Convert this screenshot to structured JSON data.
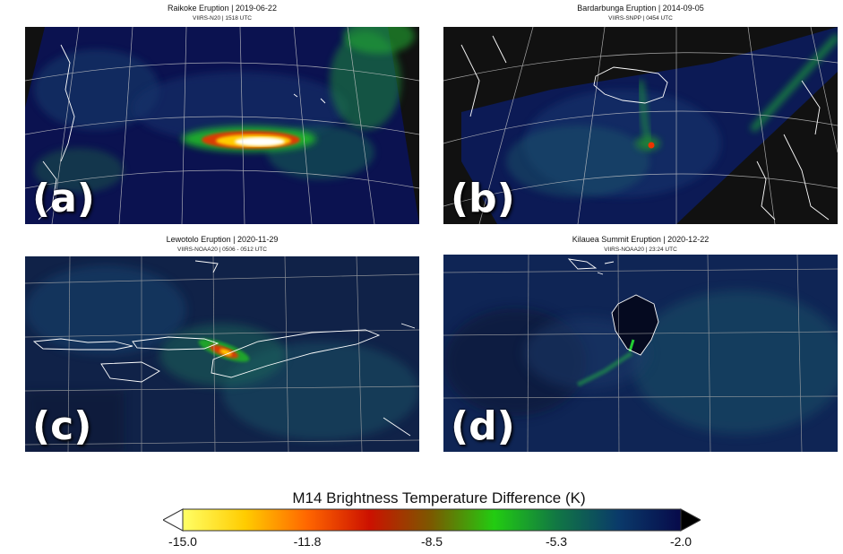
{
  "panels": [
    {
      "label": "(a)",
      "title": "Raikoke Eruption | 2019-06-22",
      "subtitle": "VIIRS-N20 | 1518 UTC"
    },
    {
      "label": "(b)",
      "title": "Bardarbunga Eruption | 2014-09-05",
      "subtitle": "VIIRS-SNPP | 0454 UTC"
    },
    {
      "label": "(c)",
      "title": "Lewotolo Eruption | 2020-11-29",
      "subtitle": "VIIRS-NOAA20 | 0506 - 0512 UTC"
    },
    {
      "label": "(d)",
      "title": "Kilauea Summit Eruption | 2020-12-22",
      "subtitle": "VIIRS-NOAA20    | 23:24 UTC"
    }
  ],
  "colorbar": {
    "title": "M14 Brightness Temperature Difference (K)",
    "ticks": [
      "-15.0",
      "-11.8",
      "-8.5",
      "-5.3",
      "-2.0"
    ],
    "colors": [
      "#ffff66",
      "#ffcc00",
      "#ff6600",
      "#cc1100",
      "#7a5a00",
      "#22cc11",
      "#117744",
      "#0a3a6a",
      "#070a4a"
    ]
  }
}
